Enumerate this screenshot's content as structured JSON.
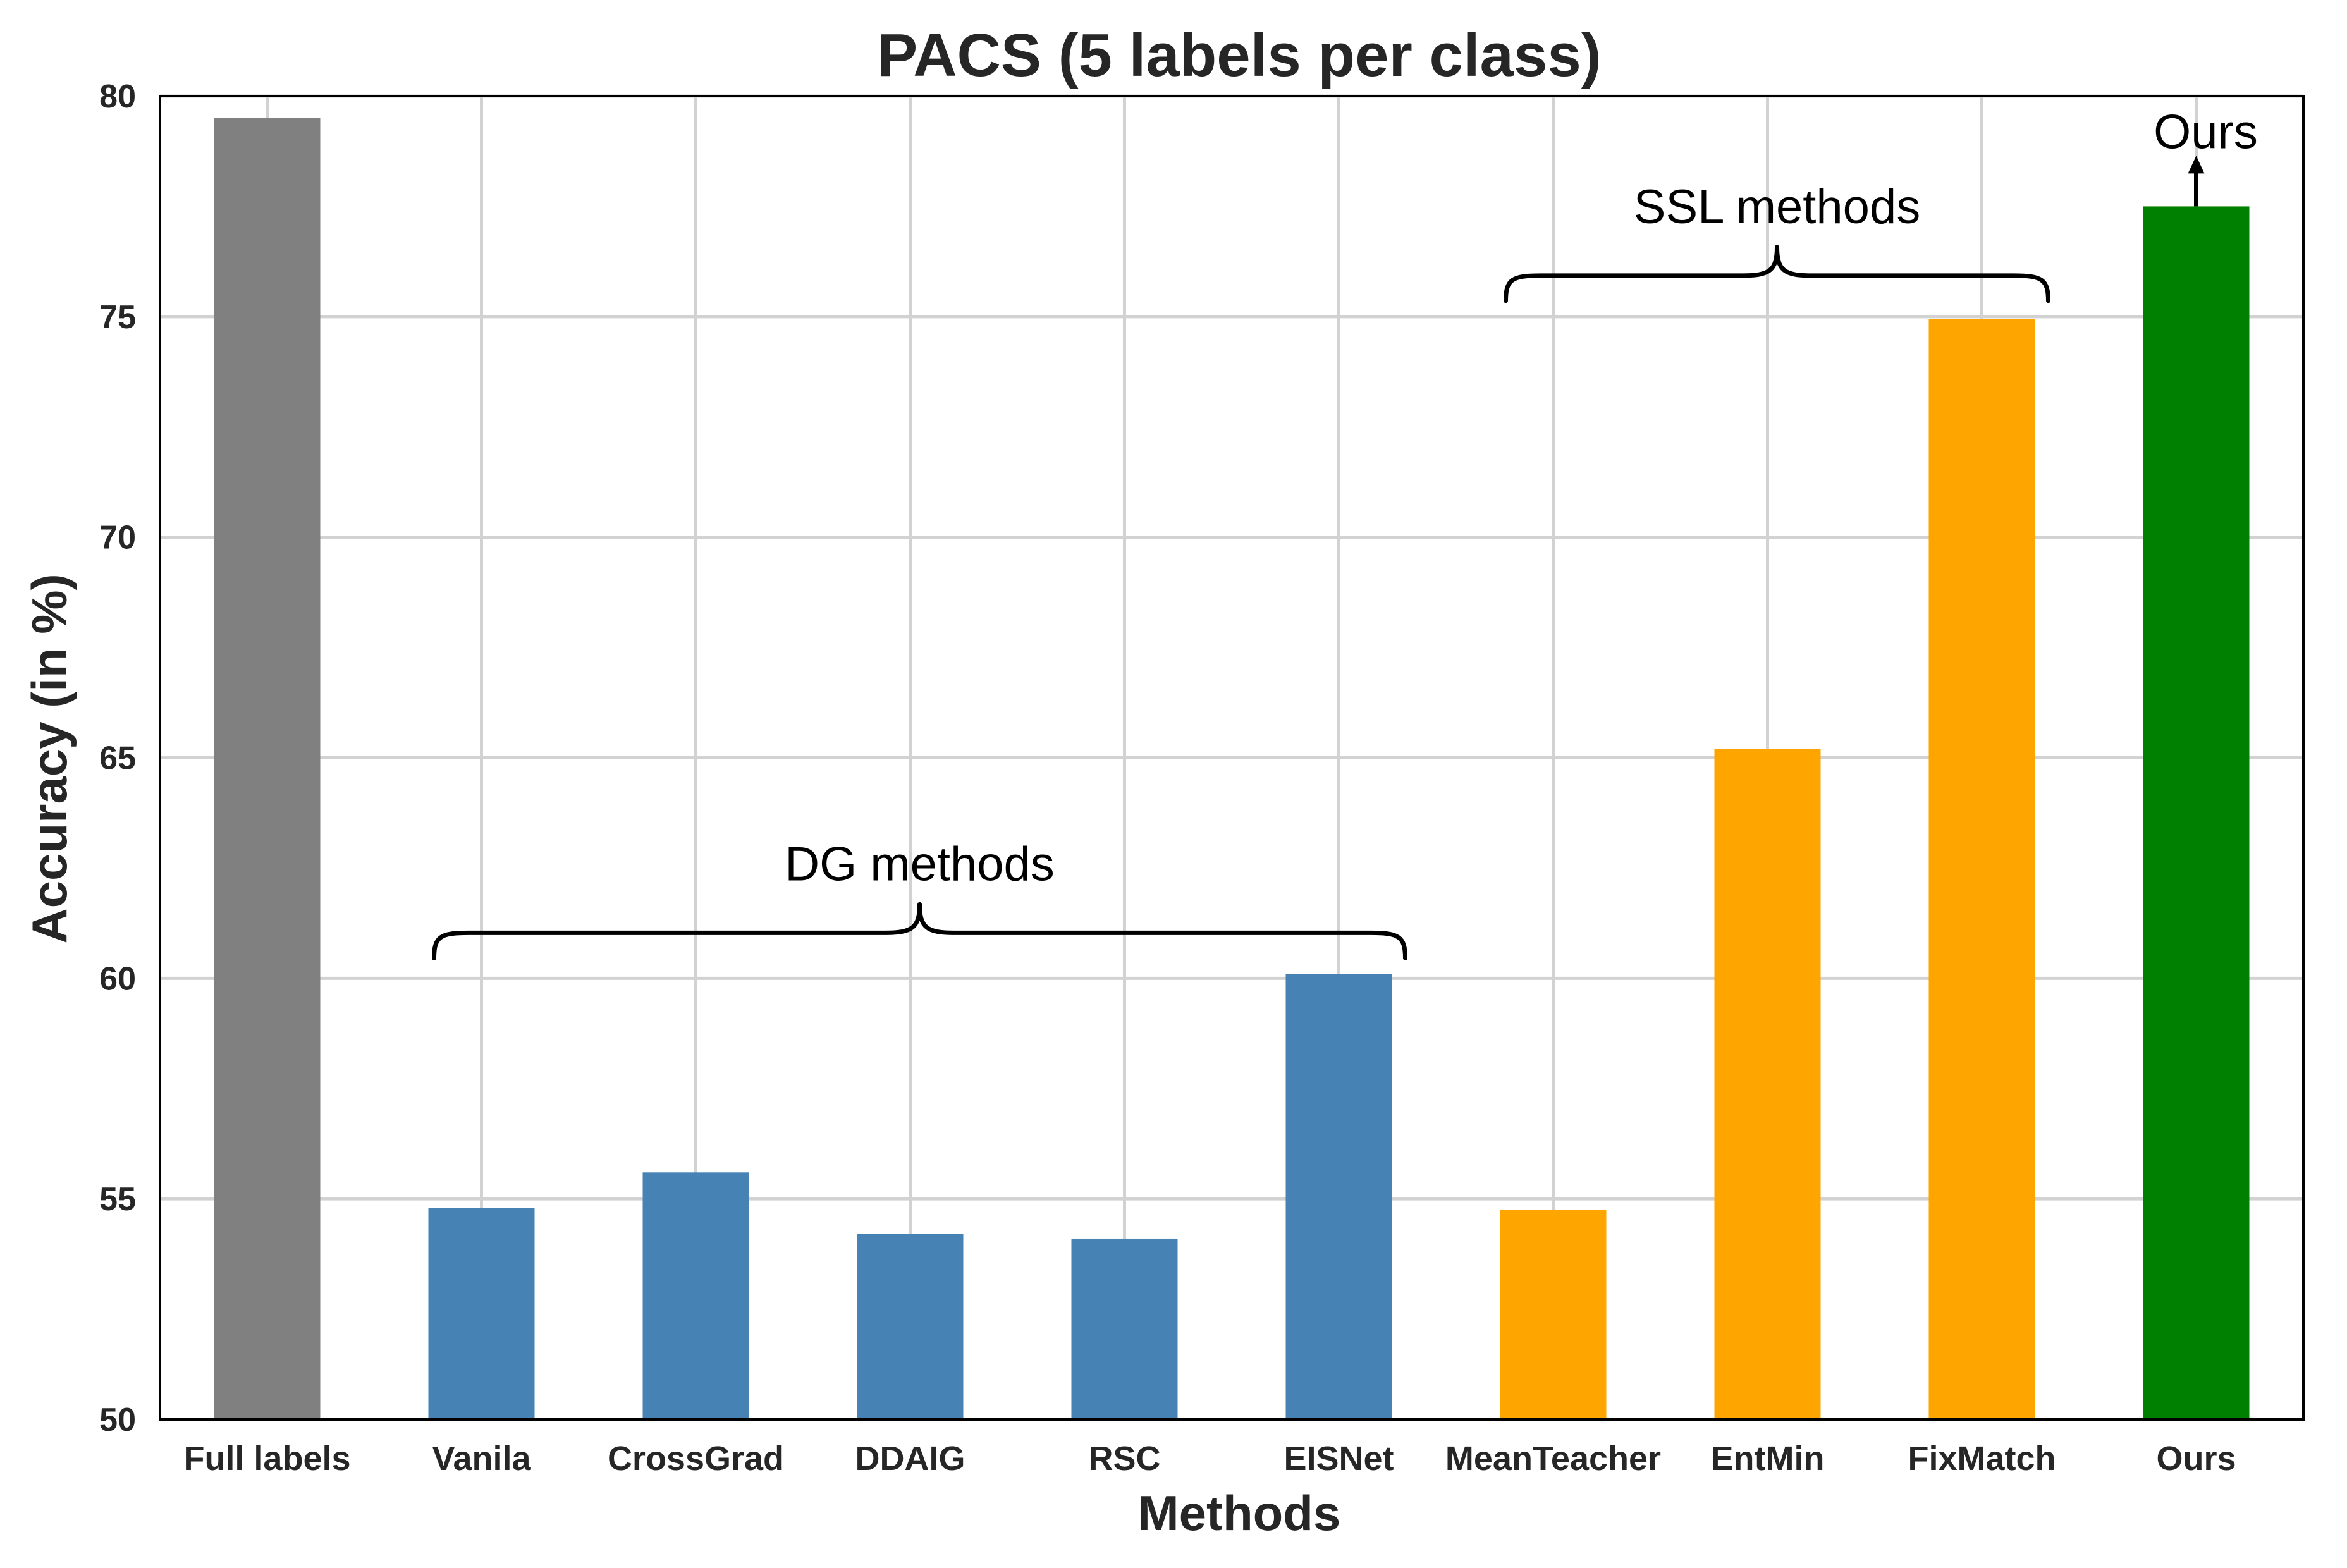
{
  "chart_data": {
    "type": "bar",
    "title": "PACS (5 labels per class)",
    "xlabel": "Methods",
    "ylabel": "Accuracy (in %)",
    "ylim": [
      50,
      80
    ],
    "yticks": [
      50,
      55,
      60,
      65,
      70,
      75,
      80
    ],
    "grid": true,
    "categories": [
      "Full labels",
      "Vanila",
      "CrossGrad",
      "DDAIG",
      "RSC",
      "EISNet",
      "MeanTeacher",
      "EntMin",
      "FixMatch",
      "Ours"
    ],
    "values": [
      79.5,
      54.8,
      55.6,
      54.2,
      54.1,
      60.1,
      54.75,
      65.2,
      74.95,
      77.5
    ],
    "bar_colors": [
      "#808080",
      "#4682b4",
      "#4682b4",
      "#4682b4",
      "#4682b4",
      "#4682b4",
      "#ffa500",
      "#ffa500",
      "#ffa500",
      "#008000"
    ],
    "annotations": [
      {
        "text": "DG methods",
        "from_category": "Vanila",
        "to_category": "EISNet",
        "level": 60.1
      },
      {
        "text": "SSL methods",
        "from_category": "MeanTeacher",
        "to_category": "FixMatch",
        "level": 75.0
      },
      {
        "text": "Ours",
        "target_category": "Ours",
        "arrow": "up"
      }
    ]
  }
}
